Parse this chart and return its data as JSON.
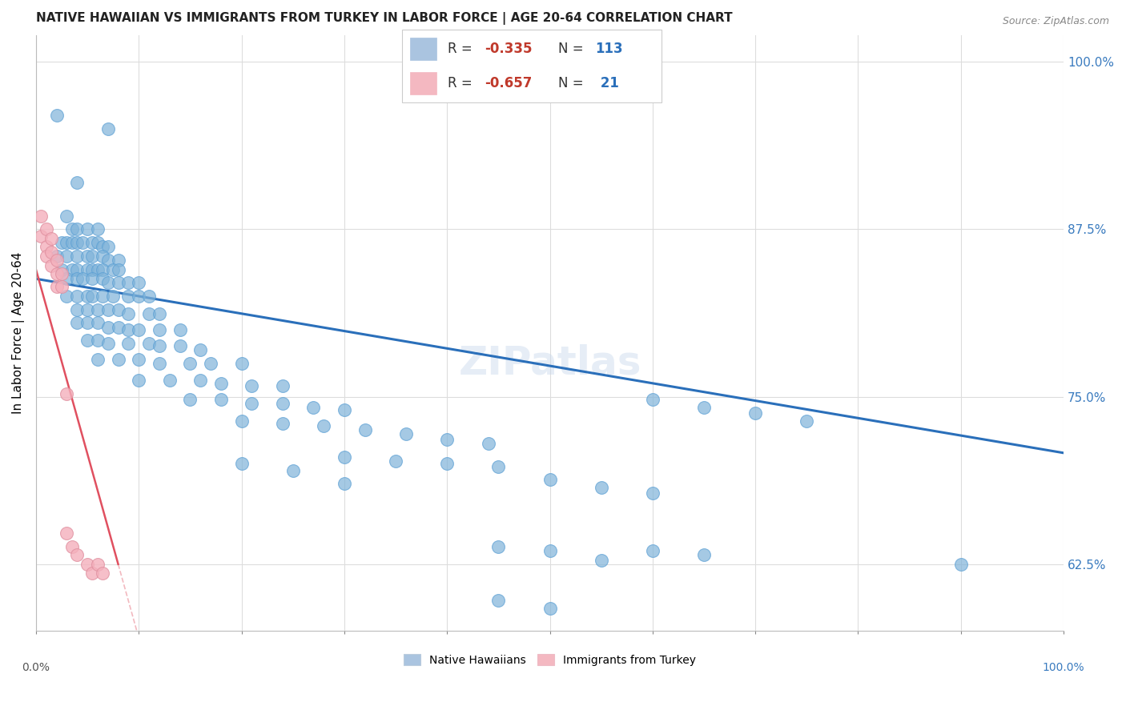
{
  "title": "NATIVE HAWAIIAN VS IMMIGRANTS FROM TURKEY IN LABOR FORCE | AGE 20-64 CORRELATION CHART",
  "source": "Source: ZipAtlas.com",
  "ylabel": "In Labor Force | Age 20-64",
  "right_yticks": [
    0.625,
    0.75,
    0.875,
    1.0
  ],
  "right_yticklabels": [
    "62.5%",
    "75.0%",
    "87.5%",
    "100.0%"
  ],
  "legend_entry1_color": "#aac4e0",
  "legend_entry2_color": "#f4b8c1",
  "blue_scatter_color": "#7fb3d9",
  "pink_scatter_color": "#f4b0bc",
  "blue_line_color": "#2a6fba",
  "pink_line_color": "#e05060",
  "watermark": "ZIPatlas",
  "xlim": [
    0.0,
    1.0
  ],
  "ylim": [
    0.575,
    1.02
  ],
  "blue_line_x0": 0.0,
  "blue_line_y0": 0.838,
  "blue_line_x1": 1.0,
  "blue_line_y1": 0.708,
  "pink_line_x0": 0.0,
  "pink_line_y0": 0.845,
  "pink_line_x1": 0.08,
  "pink_line_y1": 0.625,
  "blue_points": [
    [
      0.02,
      0.96
    ],
    [
      0.04,
      0.91
    ],
    [
      0.07,
      0.95
    ],
    [
      0.03,
      0.885
    ],
    [
      0.035,
      0.875
    ],
    [
      0.04,
      0.875
    ],
    [
      0.05,
      0.875
    ],
    [
      0.06,
      0.875
    ],
    [
      0.025,
      0.865
    ],
    [
      0.03,
      0.865
    ],
    [
      0.035,
      0.865
    ],
    [
      0.04,
      0.865
    ],
    [
      0.045,
      0.865
    ],
    [
      0.055,
      0.865
    ],
    [
      0.06,
      0.865
    ],
    [
      0.065,
      0.862
    ],
    [
      0.07,
      0.862
    ],
    [
      0.02,
      0.855
    ],
    [
      0.03,
      0.855
    ],
    [
      0.04,
      0.855
    ],
    [
      0.05,
      0.855
    ],
    [
      0.055,
      0.855
    ],
    [
      0.065,
      0.855
    ],
    [
      0.07,
      0.852
    ],
    [
      0.08,
      0.852
    ],
    [
      0.025,
      0.845
    ],
    [
      0.035,
      0.845
    ],
    [
      0.04,
      0.845
    ],
    [
      0.05,
      0.845
    ],
    [
      0.055,
      0.845
    ],
    [
      0.06,
      0.845
    ],
    [
      0.065,
      0.845
    ],
    [
      0.075,
      0.845
    ],
    [
      0.08,
      0.845
    ],
    [
      0.03,
      0.838
    ],
    [
      0.04,
      0.838
    ],
    [
      0.045,
      0.838
    ],
    [
      0.055,
      0.838
    ],
    [
      0.065,
      0.838
    ],
    [
      0.07,
      0.835
    ],
    [
      0.08,
      0.835
    ],
    [
      0.09,
      0.835
    ],
    [
      0.1,
      0.835
    ],
    [
      0.03,
      0.825
    ],
    [
      0.04,
      0.825
    ],
    [
      0.05,
      0.825
    ],
    [
      0.055,
      0.825
    ],
    [
      0.065,
      0.825
    ],
    [
      0.075,
      0.825
    ],
    [
      0.09,
      0.825
    ],
    [
      0.1,
      0.825
    ],
    [
      0.11,
      0.825
    ],
    [
      0.04,
      0.815
    ],
    [
      0.05,
      0.815
    ],
    [
      0.06,
      0.815
    ],
    [
      0.07,
      0.815
    ],
    [
      0.08,
      0.815
    ],
    [
      0.09,
      0.812
    ],
    [
      0.11,
      0.812
    ],
    [
      0.12,
      0.812
    ],
    [
      0.04,
      0.805
    ],
    [
      0.05,
      0.805
    ],
    [
      0.06,
      0.805
    ],
    [
      0.07,
      0.802
    ],
    [
      0.08,
      0.802
    ],
    [
      0.09,
      0.8
    ],
    [
      0.1,
      0.8
    ],
    [
      0.12,
      0.8
    ],
    [
      0.14,
      0.8
    ],
    [
      0.05,
      0.792
    ],
    [
      0.06,
      0.792
    ],
    [
      0.07,
      0.79
    ],
    [
      0.09,
      0.79
    ],
    [
      0.11,
      0.79
    ],
    [
      0.12,
      0.788
    ],
    [
      0.14,
      0.788
    ],
    [
      0.16,
      0.785
    ],
    [
      0.06,
      0.778
    ],
    [
      0.08,
      0.778
    ],
    [
      0.1,
      0.778
    ],
    [
      0.12,
      0.775
    ],
    [
      0.15,
      0.775
    ],
    [
      0.17,
      0.775
    ],
    [
      0.2,
      0.775
    ],
    [
      0.1,
      0.762
    ],
    [
      0.13,
      0.762
    ],
    [
      0.16,
      0.762
    ],
    [
      0.18,
      0.76
    ],
    [
      0.21,
      0.758
    ],
    [
      0.24,
      0.758
    ],
    [
      0.15,
      0.748
    ],
    [
      0.18,
      0.748
    ],
    [
      0.21,
      0.745
    ],
    [
      0.24,
      0.745
    ],
    [
      0.27,
      0.742
    ],
    [
      0.3,
      0.74
    ],
    [
      0.2,
      0.732
    ],
    [
      0.24,
      0.73
    ],
    [
      0.28,
      0.728
    ],
    [
      0.32,
      0.725
    ],
    [
      0.36,
      0.722
    ],
    [
      0.4,
      0.718
    ],
    [
      0.44,
      0.715
    ],
    [
      0.3,
      0.705
    ],
    [
      0.35,
      0.702
    ],
    [
      0.4,
      0.7
    ],
    [
      0.45,
      0.698
    ],
    [
      0.5,
      0.688
    ],
    [
      0.55,
      0.682
    ],
    [
      0.6,
      0.678
    ],
    [
      0.6,
      0.748
    ],
    [
      0.65,
      0.742
    ],
    [
      0.7,
      0.738
    ],
    [
      0.75,
      0.732
    ],
    [
      0.2,
      0.7
    ],
    [
      0.25,
      0.695
    ],
    [
      0.3,
      0.685
    ],
    [
      0.45,
      0.638
    ],
    [
      0.5,
      0.635
    ],
    [
      0.55,
      0.628
    ],
    [
      0.6,
      0.635
    ],
    [
      0.65,
      0.632
    ],
    [
      0.9,
      0.625
    ],
    [
      0.45,
      0.598
    ],
    [
      0.5,
      0.592
    ]
  ],
  "pink_points": [
    [
      0.005,
      0.885
    ],
    [
      0.005,
      0.87
    ],
    [
      0.01,
      0.875
    ],
    [
      0.01,
      0.862
    ],
    [
      0.01,
      0.855
    ],
    [
      0.015,
      0.868
    ],
    [
      0.015,
      0.858
    ],
    [
      0.015,
      0.848
    ],
    [
      0.02,
      0.852
    ],
    [
      0.02,
      0.842
    ],
    [
      0.02,
      0.832
    ],
    [
      0.025,
      0.842
    ],
    [
      0.025,
      0.832
    ],
    [
      0.03,
      0.752
    ],
    [
      0.03,
      0.648
    ],
    [
      0.035,
      0.638
    ],
    [
      0.04,
      0.632
    ],
    [
      0.05,
      0.625
    ],
    [
      0.055,
      0.618
    ],
    [
      0.06,
      0.625
    ],
    [
      0.065,
      0.618
    ]
  ]
}
